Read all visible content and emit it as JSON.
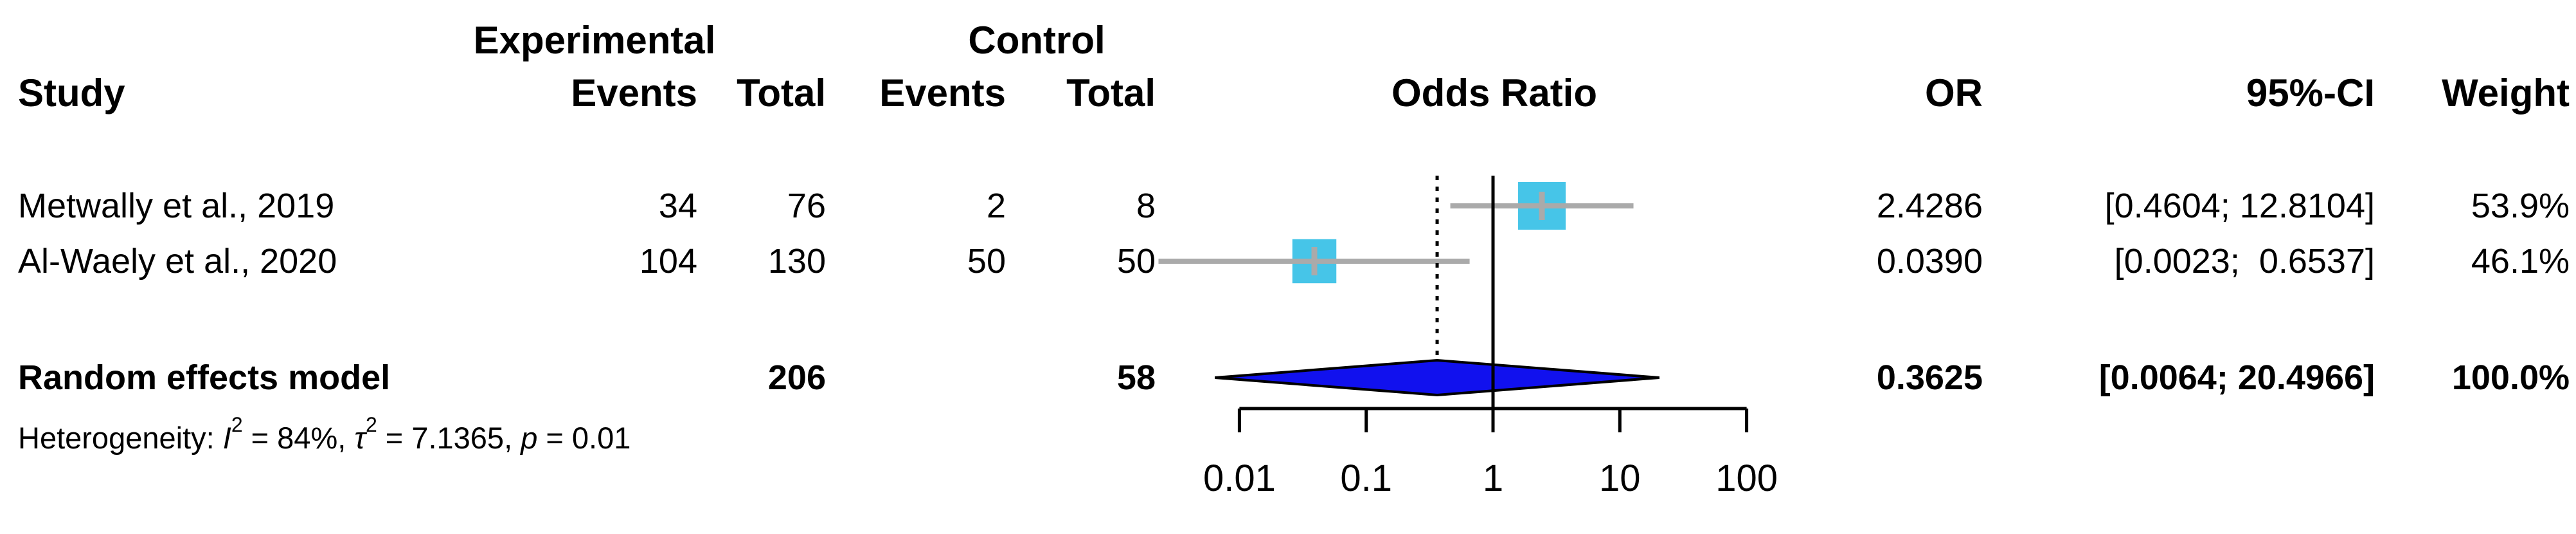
{
  "colors": {
    "square": "#46c5e8",
    "whisker": "#aaaaaa",
    "diamond_fill": "#1111ee",
    "diamond_stroke": "#000000",
    "line": "#000000",
    "text": "#000000",
    "background": "#ffffff"
  },
  "header": {
    "study": "Study",
    "experimental": "Experimental",
    "control": "Control",
    "exp_events": "Events",
    "exp_total": "Total",
    "ctrl_events": "Events",
    "ctrl_total": "Total",
    "plot_title": "Odds Ratio",
    "or": "OR",
    "ci": "95%-CI",
    "weight": "Weight"
  },
  "rows": [
    {
      "study": "Metwally et al., 2019",
      "exp_events": "34",
      "exp_total": "76",
      "ctrl_events": "2",
      "ctrl_total": "8",
      "or": "2.4286",
      "ci": "[0.4604; 12.8104]",
      "weight": "53.9%"
    },
    {
      "study": "Al-Waely et al., 2020",
      "exp_events": "104",
      "exp_total": "130",
      "ctrl_events": "50",
      "ctrl_total": "50",
      "or": "0.0390",
      "ci": "[0.0023;  0.6537]",
      "weight": "46.1%"
    }
  ],
  "pooled": {
    "study": "Random effects model",
    "exp_total": "206",
    "ctrl_total": "58",
    "or": "0.3625",
    "ci": "[0.0064; 20.4966]",
    "weight": "100.0%"
  },
  "heterogeneity": {
    "prefix": "Heterogeneity: ",
    "i_sym": "I",
    "i_sup": "2",
    "i_val": " = 84%, ",
    "tau_sym": "τ",
    "tau_sup": "2",
    "tau_val": " = 7.1365, ",
    "p_sym": "p",
    "p_val": " = 0.01"
  },
  "axis_tick_labels": [
    "0.01",
    "0.1",
    "1",
    "10",
    "100"
  ],
  "chart_data": {
    "type": "forest",
    "title": "Odds Ratio",
    "x_scale": "log10",
    "axis_ticks": [
      0.01,
      0.1,
      1,
      10,
      100
    ],
    "xlim": [
      0.01,
      100
    ],
    "reference_line": 1,
    "pooled_effect_line": 0.3625,
    "studies": [
      {
        "label": "Metwally et al., 2019",
        "exp_events": 34,
        "exp_total": 76,
        "ctrl_events": 2,
        "ctrl_total": 8,
        "or": 2.4286,
        "ci_low": 0.4604,
        "ci_high": 12.8104,
        "weight_pct": 53.9
      },
      {
        "label": "Al-Waely et al., 2020",
        "exp_events": 104,
        "exp_total": 130,
        "ctrl_events": 50,
        "ctrl_total": 50,
        "or": 0.039,
        "ci_low": 0.0023,
        "ci_high": 0.6537,
        "weight_pct": 46.1
      }
    ],
    "pooled": {
      "label": "Random effects model",
      "exp_total": 206,
      "ctrl_total": 58,
      "or": 0.3625,
      "ci_low": 0.0064,
      "ci_high": 20.4966,
      "weight_pct": 100.0
    },
    "heterogeneity": {
      "i_squared_pct": 84,
      "tau_squared": 7.1365,
      "p_value": 0.01
    }
  }
}
